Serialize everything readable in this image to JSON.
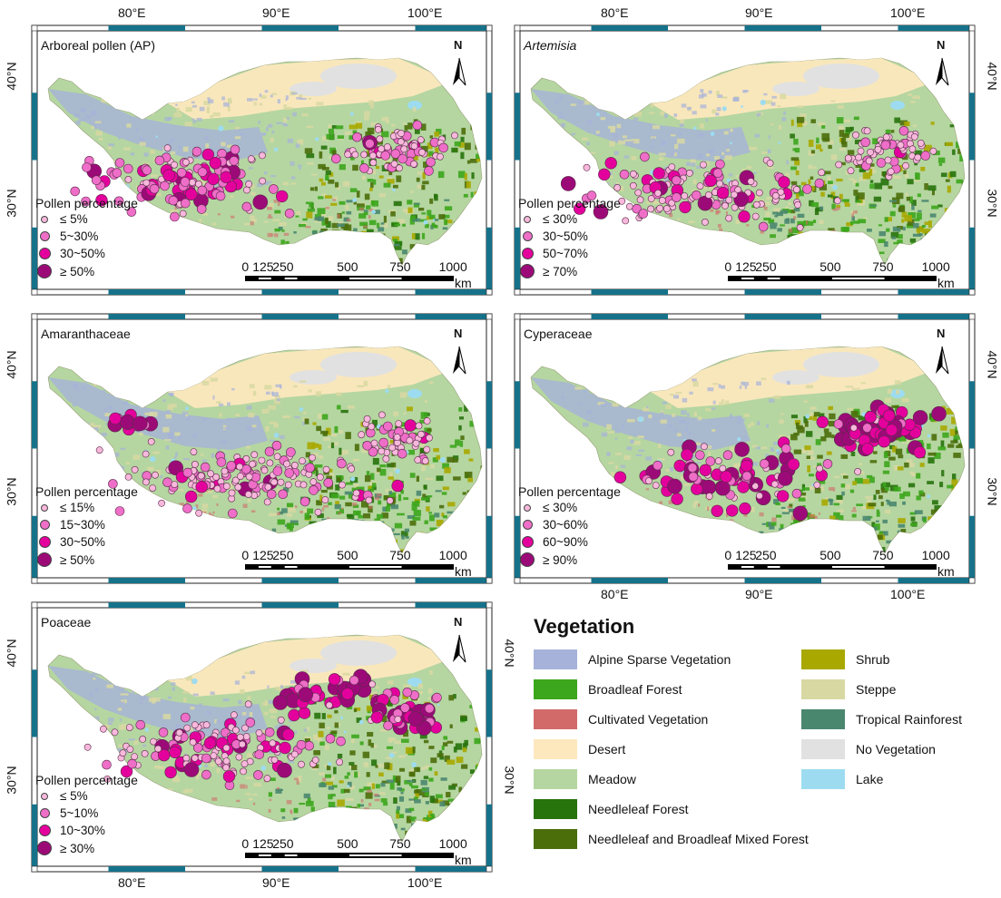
{
  "axes": {
    "lon_ticks": [
      "80°E",
      "90°E",
      "100°E"
    ],
    "lat_ticks": [
      "40°N",
      "30°N"
    ]
  },
  "legend_common": {
    "title": "Pollen percentage",
    "north": "N",
    "scale_ticks": [
      "0",
      "125",
      "250",
      "500",
      "750",
      "1000"
    ],
    "scale_unit": "km"
  },
  "panels": [
    {
      "id": "ap",
      "title": "Arboreal pollen (AP)",
      "italic": false,
      "classes": [
        "≤ 5%",
        "5~30%",
        "30~50%",
        "≥ 50%"
      ]
    },
    {
      "id": "artemisia",
      "title": "Artemisia",
      "italic": true,
      "classes": [
        "≤ 30%",
        "30~50%",
        "50~70%",
        "≥ 70%"
      ]
    },
    {
      "id": "amaranthaceae",
      "title": "Amaranthaceae",
      "italic": false,
      "classes": [
        "≤ 15%",
        "15~30%",
        "30~50%",
        "≥ 50%"
      ]
    },
    {
      "id": "cyperaceae",
      "title": "Cyperaceae",
      "italic": false,
      "classes": [
        "≤ 30%",
        "30~60%",
        "60~90%",
        "≥ 90%"
      ]
    },
    {
      "id": "poaceae",
      "title": "Poaceae",
      "italic": false,
      "classes": [
        "≤ 5%",
        "5~10%",
        "10~30%",
        "≥ 30%"
      ]
    }
  ],
  "class_colors": [
    "#f8b8dc",
    "#ee6ec8",
    "#e4009c",
    "#9c0a78"
  ],
  "vegetation_legend": {
    "title": "Vegetation",
    "items": [
      {
        "label": "Alpine Sparse Vegetation",
        "color": "#a6b2da"
      },
      {
        "label": "Broadleaf Forest",
        "color": "#3ca61c"
      },
      {
        "label": "Cultivated Vegetation",
        "color": "#d26a6a"
      },
      {
        "label": "Desert",
        "color": "#fde8be"
      },
      {
        "label": "Meadow",
        "color": "#b5d6a1"
      },
      {
        "label": "Needleleaf Forest",
        "color": "#27730c"
      },
      {
        "label": "Needleleaf and Broadleaf Mixed Forest",
        "color": "#4b6e0a"
      },
      {
        "label": "Shrub",
        "color": "#a8a800"
      },
      {
        "label": "Steppe",
        "color": "#d8d8a2"
      },
      {
        "label": "Tropical Rainforest",
        "color": "#4a876f"
      },
      {
        "label": "No Vegetation",
        "color": "#e1e1e1"
      },
      {
        "label": "Lake",
        "color": "#9ddcf0"
      }
    ]
  }
}
